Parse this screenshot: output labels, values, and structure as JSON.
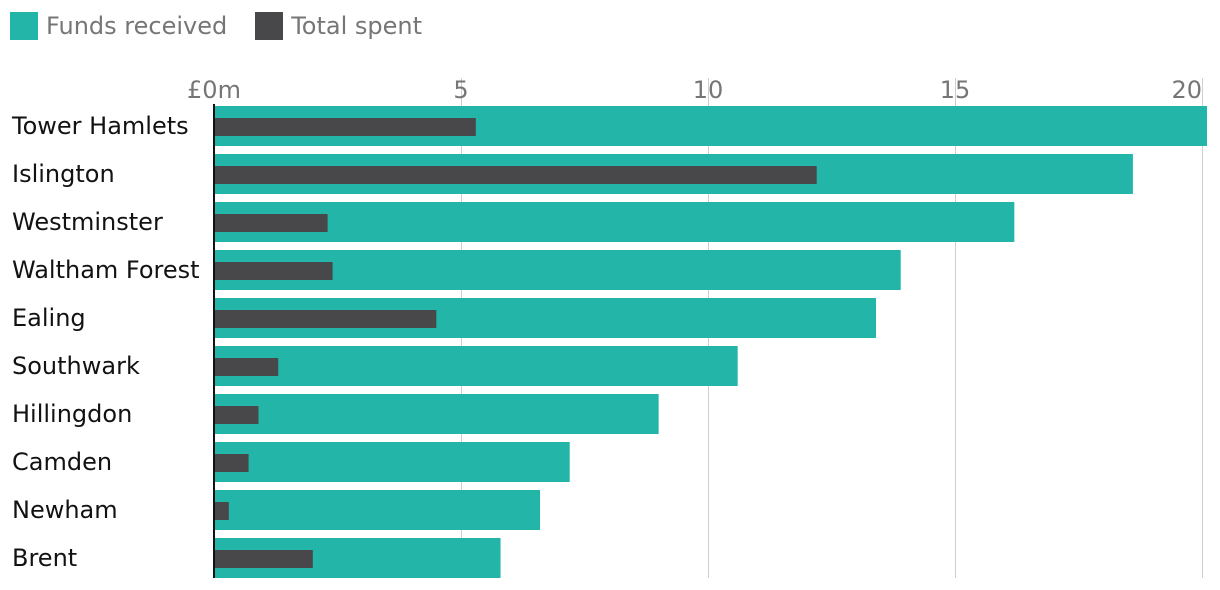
{
  "chart_data": {
    "type": "bar",
    "orientation": "horizontal",
    "categories": [
      "Tower Hamlets",
      "Islington",
      "Westminster",
      "Waltham Forest",
      "Ealing",
      "Southwark",
      "Hillingdon",
      "Camden",
      "Newham",
      "Brent"
    ],
    "series": [
      {
        "name": "Funds received",
        "color": "#22b5a8",
        "values": [
          20.1,
          18.6,
          16.2,
          13.9,
          13.4,
          10.6,
          9.0,
          7.2,
          6.6,
          5.8
        ]
      },
      {
        "name": "Total spent",
        "color": "#48484a",
        "values": [
          5.3,
          12.2,
          2.3,
          2.4,
          4.5,
          1.3,
          0.9,
          0.7,
          0.3,
          2.0
        ]
      }
    ],
    "x_ticks": [
      {
        "value": 0,
        "label": "£0m"
      },
      {
        "value": 5,
        "label": "5"
      },
      {
        "value": 10,
        "label": "10"
      },
      {
        "value": 15,
        "label": "15"
      },
      {
        "value": 20,
        "label": "20"
      }
    ],
    "xlim": [
      0,
      20.1
    ],
    "grid": true,
    "legend": "top-left",
    "title": "",
    "xlabel": "",
    "ylabel": ""
  }
}
